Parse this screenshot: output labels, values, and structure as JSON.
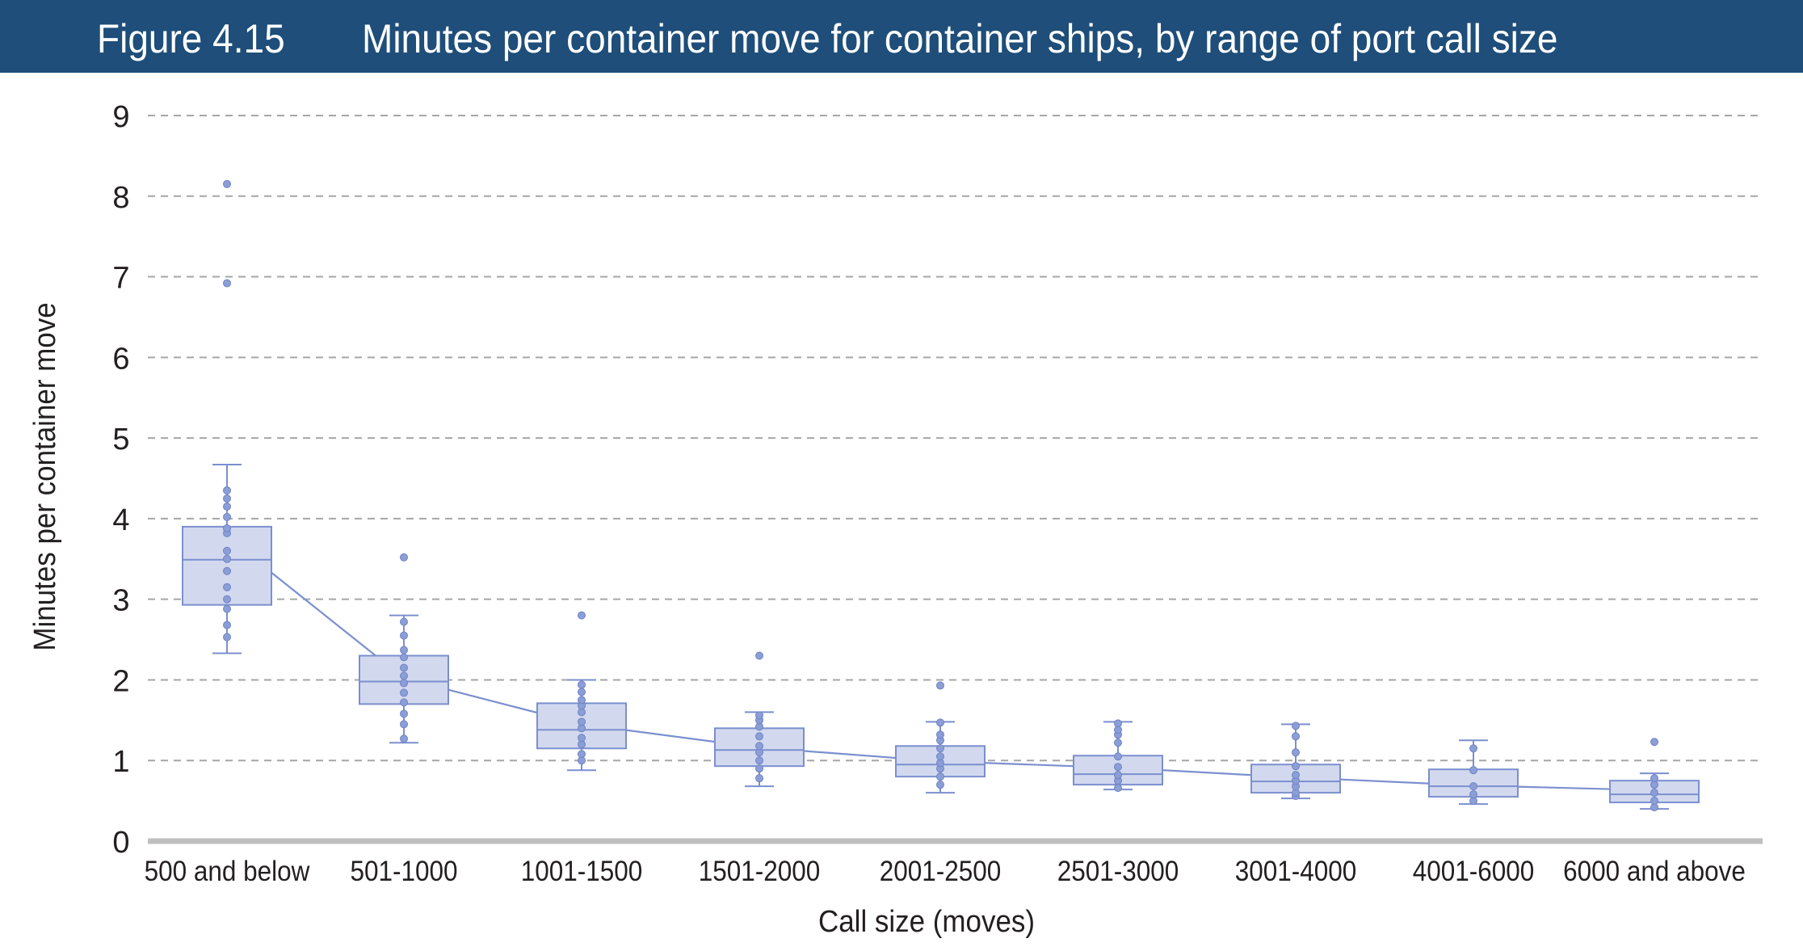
{
  "header": {
    "figure_label": "Figure 4.15",
    "title": "Minutes per container move for container ships, by range of port call size"
  },
  "colors": {
    "header_bg": "#1e4e79",
    "box_fill": "#d2d9ee",
    "box_stroke": "#7b8fcf",
    "point": "#8c9ed6",
    "grid": "#a6a6a6",
    "axis": "#bfbfbf"
  },
  "chart_data": {
    "type": "box",
    "title": "Minutes per container move for container ships, by range of port call size",
    "xlabel": "Call size (moves)",
    "ylabel": "Minutes per container move",
    "ylim": [
      0,
      9
    ],
    "yticks": [
      0,
      1,
      2,
      3,
      4,
      5,
      6,
      7,
      8,
      9
    ],
    "grid": "dashed horizontal",
    "categories": [
      "500 and below",
      "501-1000",
      "1001-1500",
      "1501-2000",
      "2001-2500",
      "2501-3000",
      "3001-4000",
      "4001-6000",
      "6000 and above"
    ],
    "boxes": [
      {
        "whisker_low": 2.33,
        "q1": 2.93,
        "median": 3.49,
        "q3": 3.9,
        "whisker_high": 4.67,
        "mean": 3.77,
        "outliers": [
          6.92,
          8.15
        ],
        "points": [
          2.53,
          2.68,
          2.88,
          3.0,
          3.15,
          3.35,
          3.5,
          3.6,
          3.82,
          3.88,
          4.02,
          4.15,
          4.25,
          4.35
        ]
      },
      {
        "whisker_low": 1.22,
        "q1": 1.7,
        "median": 1.98,
        "q3": 2.3,
        "whisker_high": 2.8,
        "mean": 2.02,
        "outliers": [
          3.52
        ],
        "points": [
          1.27,
          1.45,
          1.58,
          1.72,
          1.84,
          1.96,
          2.05,
          2.15,
          2.28,
          2.37,
          2.55,
          2.72
        ]
      },
      {
        "whisker_low": 0.88,
        "q1": 1.15,
        "median": 1.38,
        "q3": 1.71,
        "whisker_high": 2.0,
        "mean": 1.45,
        "outliers": [
          2.8
        ],
        "points": [
          1.0,
          1.08,
          1.2,
          1.28,
          1.4,
          1.48,
          1.6,
          1.68,
          1.75,
          1.85,
          1.94
        ]
      },
      {
        "whisker_low": 0.68,
        "q1": 0.93,
        "median": 1.13,
        "q3": 1.4,
        "whisker_high": 1.6,
        "mean": 1.16,
        "outliers": [
          2.3
        ],
        "points": [
          0.78,
          0.9,
          1.0,
          1.1,
          1.18,
          1.3,
          1.42,
          1.5,
          1.56
        ]
      },
      {
        "whisker_low": 0.6,
        "q1": 0.8,
        "median": 0.95,
        "q3": 1.18,
        "whisker_high": 1.48,
        "mean": 0.99,
        "outliers": [
          1.93
        ],
        "points": [
          0.7,
          0.8,
          0.9,
          0.97,
          1.05,
          1.15,
          1.25,
          1.32,
          1.47
        ]
      },
      {
        "whisker_low": 0.64,
        "q1": 0.7,
        "median": 0.83,
        "q3": 1.06,
        "whisker_high": 1.48,
        "mean": 0.91,
        "outliers": [],
        "points": [
          0.66,
          0.75,
          0.82,
          0.92,
          1.05,
          1.22,
          1.32,
          1.38,
          1.46
        ]
      },
      {
        "whisker_low": 0.53,
        "q1": 0.6,
        "median": 0.74,
        "q3": 0.95,
        "whisker_high": 1.45,
        "mean": 0.79,
        "outliers": [],
        "points": [
          0.56,
          0.6,
          0.68,
          0.75,
          0.82,
          0.93,
          1.1,
          1.3,
          1.43
        ]
      },
      {
        "whisker_low": 0.46,
        "q1": 0.55,
        "median": 0.68,
        "q3": 0.89,
        "whisker_high": 1.25,
        "mean": 0.69,
        "outliers": [],
        "points": [
          0.5,
          0.58,
          0.68,
          0.88,
          1.15
        ]
      },
      {
        "whisker_low": 0.4,
        "q1": 0.48,
        "median": 0.58,
        "q3": 0.75,
        "whisker_high": 0.84,
        "mean": 0.63,
        "outliers": [
          1.23
        ],
        "points": [
          0.42,
          0.5,
          0.6,
          0.7,
          0.78
        ]
      }
    ]
  }
}
